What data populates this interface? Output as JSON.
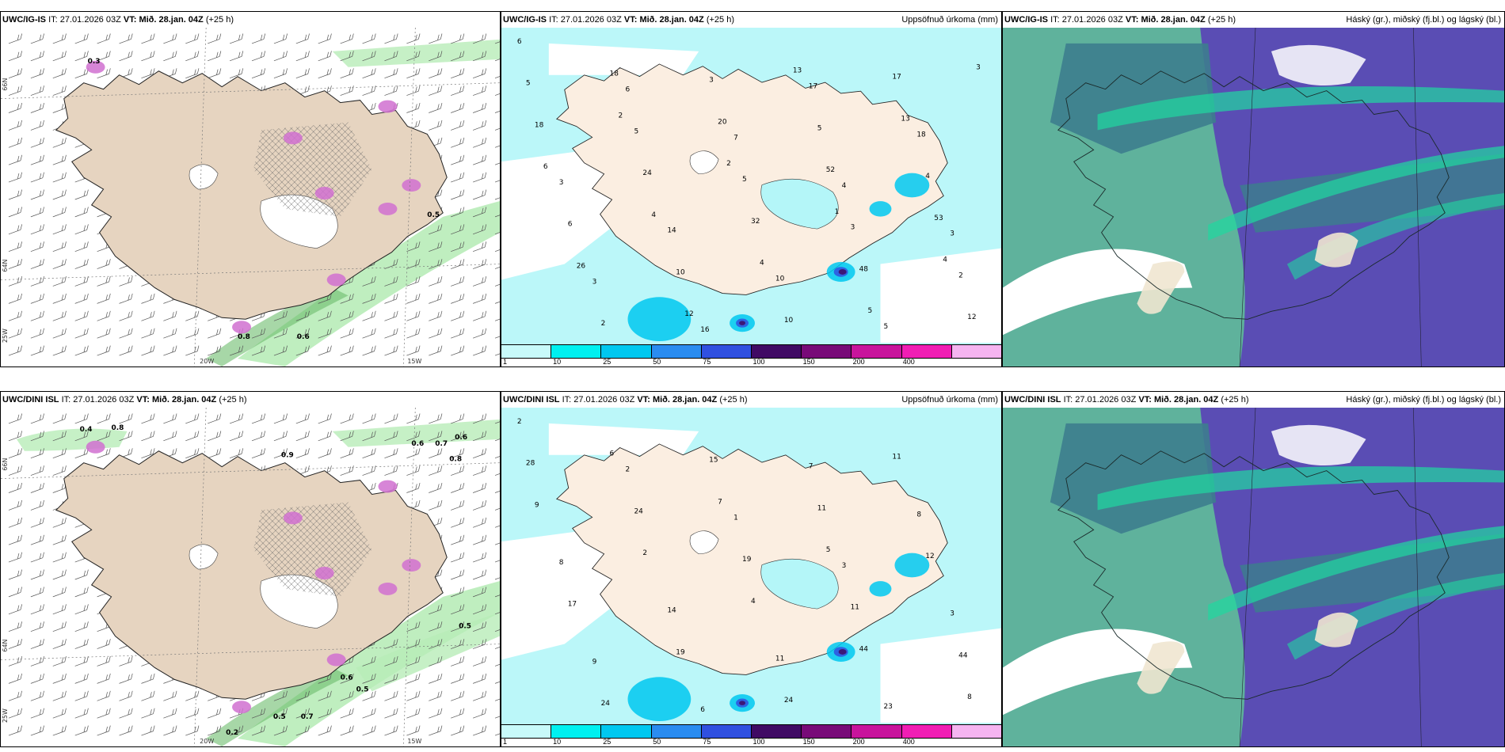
{
  "panels": [
    {
      "id": "p1",
      "model": "UWC/IG-IS",
      "it_label": "IT:",
      "it": "27.01.2026 03Z",
      "vt_label": "VT:",
      "vt": "Mið. 28.jan. 04Z",
      "lead": "(+25 h)",
      "right_title": "",
      "kind": "wind"
    },
    {
      "id": "p2",
      "model": "UWC/IG-IS",
      "it_label": "IT:",
      "it": "27.01.2026 03Z",
      "vt_label": "VT:",
      "vt": "Mið. 28.jan. 04Z",
      "lead": "(+25 h)",
      "right_title": "Uppsöfnuð úrkoma (mm)",
      "kind": "precip"
    },
    {
      "id": "p3",
      "model": "UWC/IG-IS",
      "it_label": "IT:",
      "it": "27.01.2026 03Z",
      "vt_label": "VT:",
      "vt": "Mið. 28.jan. 04Z",
      "lead": "(+25 h)",
      "right_title": "Háský (gr.), miðský (fj.bl.) og lágský (bl.)",
      "kind": "cloud"
    },
    {
      "id": "p4",
      "model": "UWC/DINI ISL",
      "it_label": "IT:",
      "it": "27.01.2026 03Z",
      "vt_label": "VT:",
      "vt": "Mið. 28.jan. 04Z",
      "lead": "(+25 h)",
      "right_title": "",
      "kind": "wind"
    },
    {
      "id": "p5",
      "model": "UWC/DINI ISL",
      "it_label": "IT:",
      "it": "27.01.2026 03Z",
      "vt_label": "VT:",
      "vt": "Mið. 28.jan. 04Z",
      "lead": "(+25 h)",
      "right_title": "Uppsöfnuð úrkoma (mm)",
      "kind": "precip"
    },
    {
      "id": "p6",
      "model": "UWC/DINI ISL",
      "it_label": "IT:",
      "it": "27.01.2026 03Z",
      "vt_label": "VT:",
      "vt": "Mið. 28.jan. 04Z",
      "lead": "(+25 h)",
      "right_title": "Háský (gr.), miðský (fj.bl.) og lágský (bl.)",
      "kind": "cloud"
    }
  ],
  "precip_colorbar": {
    "labels": [
      "1",
      "10",
      "25",
      "50",
      "75",
      "100",
      "150",
      "200",
      "400",
      ""
    ],
    "colors": [
      "#c8fafa",
      "#00f0f0",
      "#00c8f0",
      "#2a8cf0",
      "#3050e0",
      "#400a64",
      "#780a78",
      "#c8149c",
      "#f01eb4",
      "#f5b4f0"
    ]
  },
  "wind_axis": {
    "lon_labels": [
      "20W",
      "15W"
    ],
    "lat_labels": [
      "66N",
      "64N",
      "25W"
    ]
  },
  "precip_values_top": [
    "6",
    "6",
    "7",
    "4",
    "3",
    "3",
    "16",
    "17",
    "18",
    "3",
    "14",
    "10",
    "5",
    "5",
    "5",
    "5",
    "3",
    "2",
    "2",
    "3",
    "5",
    "4",
    "6",
    "10",
    "10",
    "17",
    "18",
    "24",
    "32",
    "48",
    "12",
    "18",
    "20",
    "52",
    "53",
    "26",
    "12",
    "13",
    "13",
    "6",
    "4",
    "4",
    "5",
    "3",
    "2",
    "2",
    "1",
    "4"
  ],
  "precip_values_bottom": [
    "2",
    "2",
    "1",
    "3",
    "3",
    "9",
    "6",
    "7",
    "8",
    "8",
    "14",
    "11",
    "23",
    "28",
    "24",
    "19",
    "11",
    "44",
    "24",
    "15",
    "11",
    "12",
    "17",
    "19",
    "24",
    "11",
    "9",
    "2",
    "4",
    "44",
    "8",
    "6",
    "7",
    "5"
  ],
  "wind_labels_top": [
    "0.3",
    "0.8",
    "0.5",
    "0.6"
  ],
  "wind_labels_bottom": [
    "0.4",
    "0.8",
    "0.9",
    "0.6",
    "0.7",
    "0.6",
    "0.8",
    "0.5",
    "0.5",
    "0.6",
    "0.7",
    "0.5",
    "0.2"
  ],
  "colors": {
    "land_wind": "#e6d4c0",
    "land_precip": "#fbeee1",
    "precip_light": "#b4f6f8",
    "cloud_high": "#5fb29c",
    "cloud_mid": "#3d7d8e",
    "cloud_low": "#5a4db4",
    "magenta": "#d070d0",
    "green": "#b8ecb8"
  }
}
